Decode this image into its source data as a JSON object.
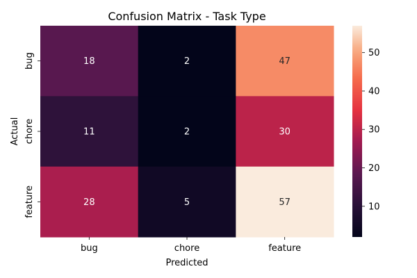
{
  "chart_data": {
    "type": "heatmap",
    "title": "Confusion Matrix - Task Type",
    "xlabel": "Predicted",
    "ylabel": "Actual",
    "x_categories": [
      "bug",
      "chore",
      "feature"
    ],
    "y_categories": [
      "bug",
      "chore",
      "feature"
    ],
    "values": [
      [
        18,
        2,
        47
      ],
      [
        11,
        2,
        30
      ],
      [
        28,
        5,
        57
      ]
    ],
    "colorbar": {
      "min": 2,
      "max": 57,
      "ticks": [
        10,
        20,
        30,
        40,
        50
      ],
      "colormap": "rocket"
    },
    "annotation_colors": {
      "on_dark": "#ffffff",
      "on_light": "#262626"
    }
  }
}
